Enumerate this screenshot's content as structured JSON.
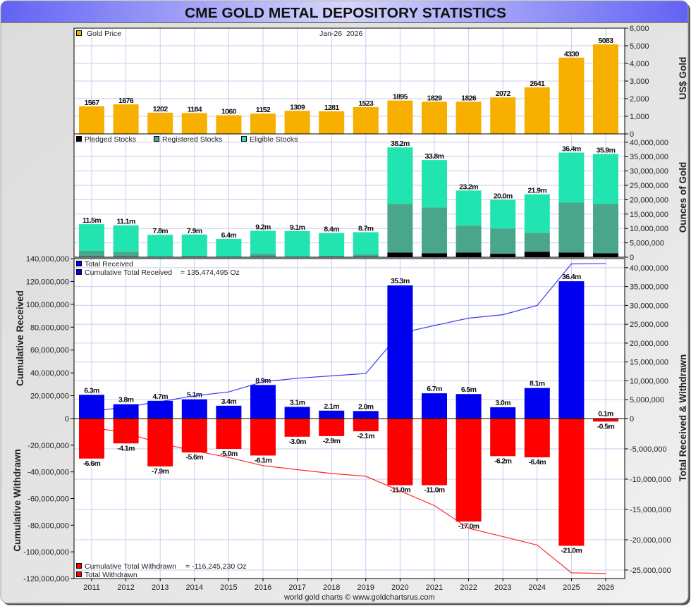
{
  "title": "CME GOLD METAL DEPOSITORY STATISTICS",
  "footer": "world gold charts © www.goldchartsrus.com",
  "colors": {
    "gold": "#f8b000",
    "pledged": "#000000",
    "registered": "#4aa68a",
    "eligible": "#22e4b0",
    "received": "#0000f0",
    "withdrawn": "#ff0000",
    "cum_received_line": "#3c3cf0",
    "cum_withdrawn_line": "#ff2a2a",
    "grid": "#cbcbf2",
    "title_edge": "#6262f4",
    "title_center": "#d6d6fc"
  },
  "chart_data": [
    {
      "type": "bar",
      "legend": [
        "Gold Price"
      ],
      "legend_position": "top-left",
      "date_label": "Jan-26  2026",
      "categories": [
        "2011",
        "2012",
        "2013",
        "2014",
        "2015",
        "2016",
        "2017",
        "2018",
        "2019",
        "2020",
        "2021",
        "2022",
        "2023",
        "2024",
        "2025",
        "2026"
      ],
      "values": [
        1567,
        1676,
        1202,
        1184,
        1060,
        1152,
        1309,
        1281,
        1523,
        1895,
        1829,
        1826,
        2072,
        2641,
        4330,
        5083
      ],
      "value_labels": [
        "1567",
        "1676",
        "1202",
        "1184",
        "1060",
        "1152",
        "1309",
        "1281",
        "1523",
        "1895",
        "1829",
        "1826",
        "2072",
        "2641",
        "4330",
        "5083"
      ],
      "ylabel": "US$ Gold",
      "ylim": [
        0,
        6000
      ],
      "yticks": [
        0,
        1000,
        2000,
        3000,
        4000,
        5000,
        6000
      ],
      "ytick_labels": [
        "0",
        "1,000",
        "2,000",
        "3,000",
        "4,000",
        "5,000",
        "6,000"
      ],
      "grid": true
    },
    {
      "type": "bar",
      "stacked": true,
      "legend_position": "top-left",
      "categories": [
        "2011",
        "2012",
        "2013",
        "2014",
        "2015",
        "2016",
        "2017",
        "2018",
        "2019",
        "2020",
        "2021",
        "2022",
        "2023",
        "2024",
        "2025",
        "2026"
      ],
      "series": [
        {
          "name": "Pledged Stocks",
          "values": [
            0,
            0,
            0,
            0,
            0,
            0,
            0,
            0,
            0,
            1650000,
            1400000,
            1650000,
            1200000,
            1900000,
            1650000,
            1400000
          ]
        },
        {
          "name": "Registered Stocks",
          "values": [
            2200000,
            1900000,
            200000,
            450000,
            0,
            1200000,
            200000,
            450000,
            950000,
            16900000,
            15900000,
            9350000,
            8800000,
            6600000,
            17350000,
            17100000
          ]
        },
        {
          "name": "Eligible Stocks",
          "values": [
            9300000,
            9200000,
            7600000,
            7450000,
            6400000,
            8000000,
            8900000,
            7950000,
            7750000,
            19650000,
            16500000,
            12200000,
            10000000,
            13400000,
            17400000,
            17400000
          ]
        }
      ],
      "total_labels": [
        "11.5m",
        "11.1m",
        "7.8m",
        "7.9m",
        "6.4m",
        "9.2m",
        "9.1m",
        "8.4m",
        "8.7m",
        "38.2m",
        "33.8m",
        "23.2m",
        "20.0m",
        "21.9m",
        "36.4m",
        "35.9m"
      ],
      "ylabel": "Ounces of Gold",
      "ylim": [
        0,
        42900000
      ],
      "yticks": [
        0,
        5000000,
        10000000,
        15000000,
        20000000,
        25000000,
        30000000,
        35000000,
        40000000
      ],
      "ytick_labels": [
        "0",
        "5,000,000",
        "10,000,000",
        "15,000,000",
        "20,000,000",
        "25,000,000",
        "30,000,000",
        "35,000,000",
        "40,000,000"
      ],
      "grid": true
    },
    {
      "type": "bar+line",
      "categories": [
        "2011",
        "2012",
        "2013",
        "2014",
        "2015",
        "2016",
        "2017",
        "2018",
        "2019",
        "2020",
        "2021",
        "2022",
        "2023",
        "2024",
        "2025",
        "2026"
      ],
      "series": [
        {
          "name": "Total Received",
          "axis": "right",
          "values": [
            6300000,
            3800000,
            4700000,
            5100000,
            3400000,
            8900000,
            3100000,
            2100000,
            2000000,
            35300000,
            6700000,
            6500000,
            3000000,
            8100000,
            36400000,
            100000
          ],
          "labels": [
            "6.3m",
            "3.8m",
            "4.7m",
            "5.1m",
            "3.4m",
            "8.9m",
            "3.1m",
            "2.1m",
            "2.0m",
            "35.3m",
            "6.7m",
            "6.5m",
            "3.0m",
            "8.1m",
            "36.4m",
            "0.1m"
          ]
        },
        {
          "name": "Total Withdrawn",
          "axis": "right",
          "values": [
            -6600000,
            -4100000,
            -7900000,
            -5600000,
            -5000000,
            -6100000,
            -3000000,
            -2900000,
            -2100000,
            -11000000,
            -11000000,
            -17000000,
            -6200000,
            -6400000,
            -21000000,
            -500000
          ],
          "labels": [
            "-6.6m",
            "-4.1m",
            "-7.9m",
            "-5.6m",
            "-5.0m",
            "-6.1m",
            "-3.0m",
            "-2.9m",
            "-2.1m",
            "-11.0m",
            "-11.0m",
            "-17.0m",
            "-6.2m",
            "-6.4m",
            "-21.0m",
            "-0.5m"
          ]
        },
        {
          "name": "Cumulative Total Received",
          "axis": "left",
          "total_label": "= 135,474,495 Oz",
          "values": [
            6300000,
            10100000,
            14800000,
            19900000,
            23300000,
            32200000,
            35300000,
            37400000,
            39400000,
            74700000,
            81400000,
            87900000,
            90900000,
            99000000,
            135370000,
            135474495
          ]
        },
        {
          "name": "Cumulative Total Withdrawn",
          "axis": "left",
          "total_label": "= -116,245,230 Oz",
          "values": [
            -6600000,
            -10700000,
            -18600000,
            -24200000,
            -29200000,
            -35300000,
            -38300000,
            -41200000,
            -43300000,
            -54300000,
            -65300000,
            -82300000,
            -88500000,
            -94900000,
            -115700000,
            -116245230
          ]
        }
      ],
      "ylabel_left_top": "Cumulative Received",
      "ylabel_left_bottom": "Cumulative Withdrawn",
      "ylabel_right": "Total Received & Withdrawn",
      "ylim_left": [
        -120000000,
        140000000
      ],
      "ylim_right": [
        -26400000,
        42400000
      ],
      "yticks_left": [
        140000000,
        120000000,
        100000000,
        80000000,
        60000000,
        40000000,
        20000000,
        0,
        -20000000,
        -40000000,
        -60000000,
        -80000000,
        -100000000,
        -120000000
      ],
      "ytick_labels_left": [
        "140,000,000",
        "120,000,000",
        "100,000,000",
        "80,000,000",
        "60,000,000",
        "40,000,000",
        "20,000,000",
        "0",
        "-20,000,000",
        "-40,000,000",
        "-60,000,000",
        "-80,000,000",
        "-100,000,000",
        "-120,000,000"
      ],
      "yticks_right": [
        40000000,
        35000000,
        30000000,
        25000000,
        20000000,
        15000000,
        10000000,
        5000000,
        0,
        -5000000,
        -10000000,
        -15000000,
        -20000000,
        -25000000
      ],
      "ytick_labels_right": [
        "40,000,000",
        "35,000,000",
        "30,000,000",
        "25,000,000",
        "20,000,000",
        "15,000,000",
        "10,000,000",
        "5,000,000",
        "0",
        "-5,000,000",
        "-10,000,000",
        "-15,000,000",
        "-20,000,000",
        "-25,000,000"
      ],
      "legend_position": "top-left (received), bottom-left (withdrawn)",
      "grid": true
    }
  ]
}
